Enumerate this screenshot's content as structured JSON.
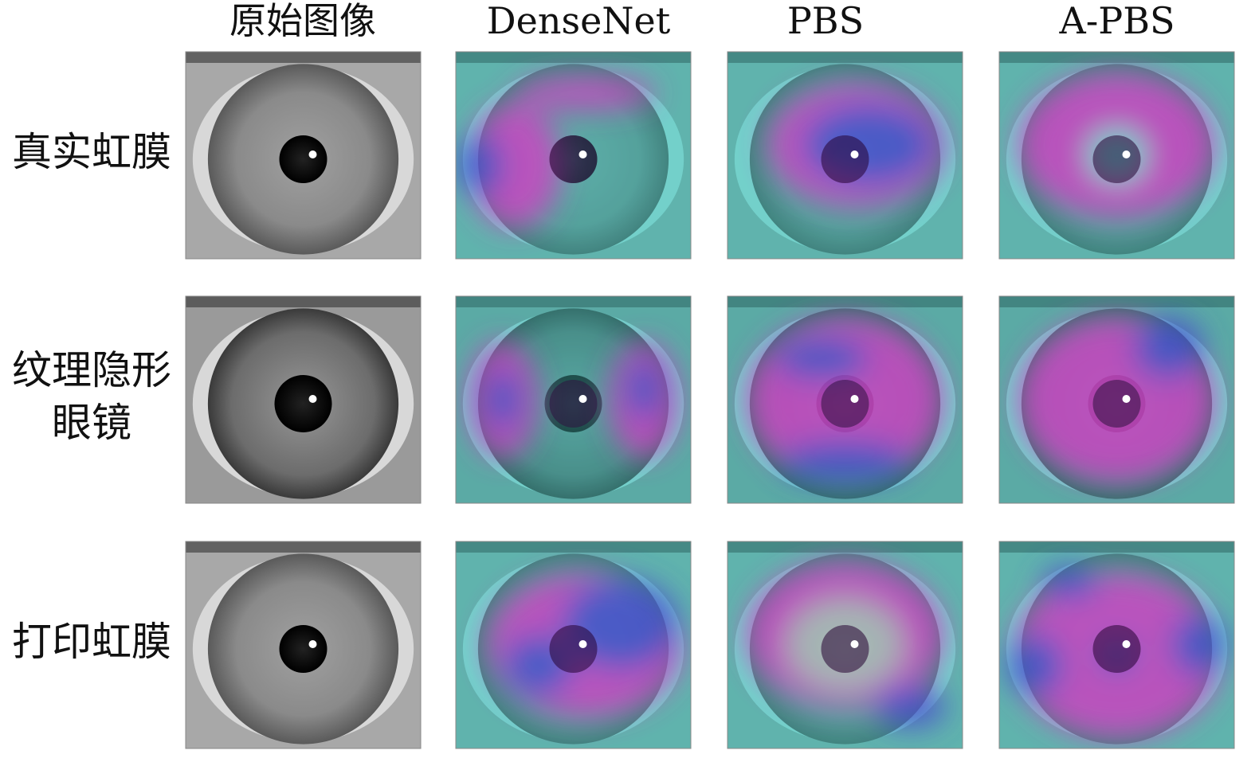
{
  "columns": [
    "原始图像",
    "DenseNet",
    "PBS",
    "A-PBS"
  ],
  "rows": [
    [
      "真实虹膜"
    ],
    [
      "纹理隐形",
      "眼镜"
    ],
    [
      "打印虹膜"
    ]
  ]
}
